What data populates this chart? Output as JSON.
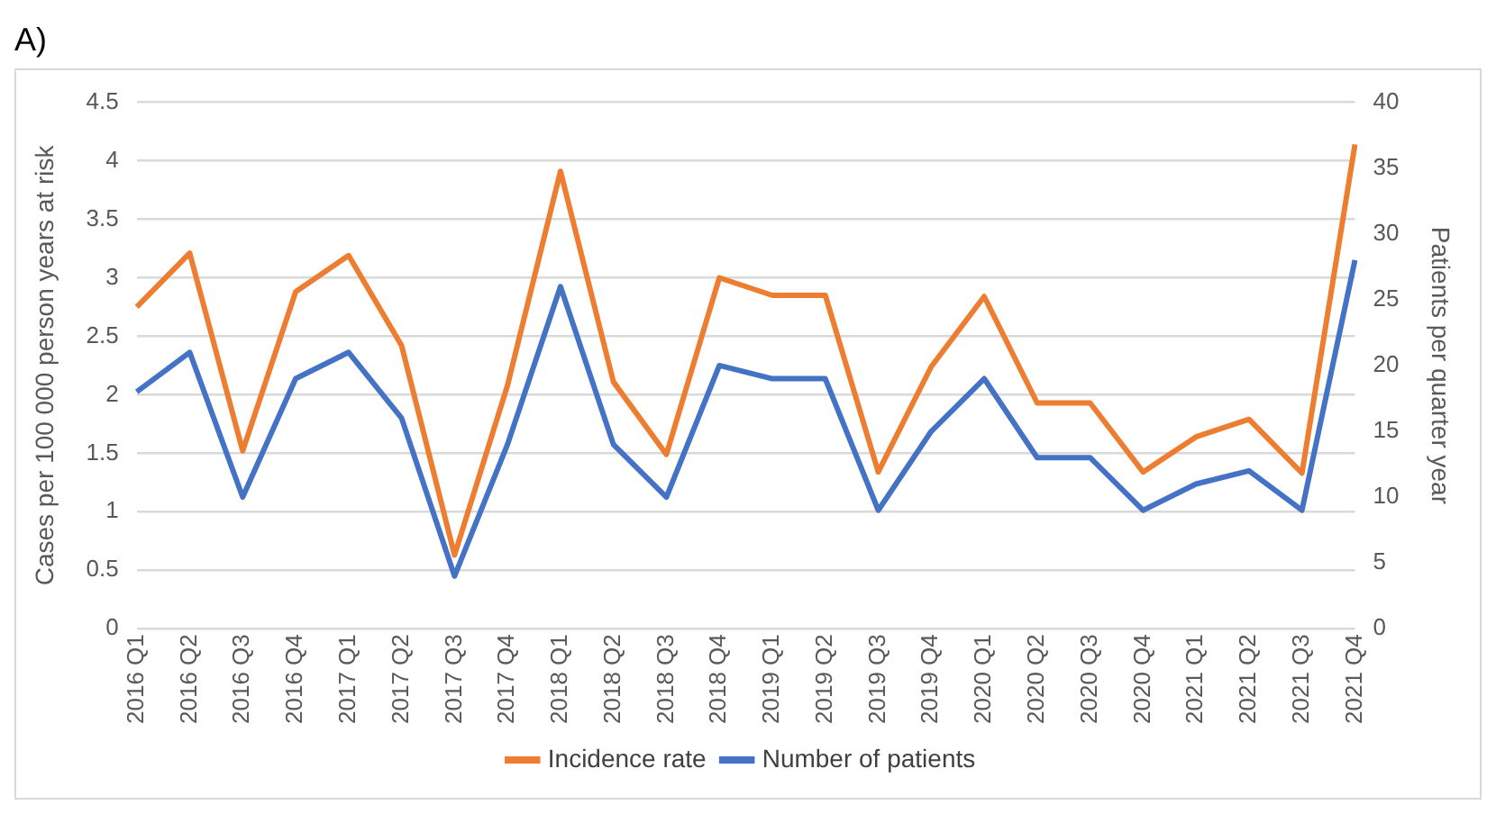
{
  "chart_data": {
    "type": "line",
    "title": "A)",
    "ylabel": "Cases per 100 000 person years at risk",
    "y2label": "Patients per quarter year",
    "categories": [
      "2016 Q1",
      "2016 Q2",
      "2016 Q3",
      "2016 Q4",
      "2017 Q1",
      "2017 Q2",
      "2017 Q3",
      "2017 Q4",
      "2018 Q1",
      "2018 Q2",
      "2018 Q3",
      "2018 Q4",
      "2019 Q1",
      "2019 Q2",
      "2019 Q3",
      "2019 Q4",
      "2020 Q1",
      "2020 Q2",
      "2020 Q3",
      "2020 Q4",
      "2021 Q1",
      "2021 Q2",
      "2021 Q3",
      "2021 Q4"
    ],
    "series": [
      {
        "name": "Incidence rate",
        "color": "#ed7d31",
        "values": [
          2.75,
          3.21,
          1.52,
          2.88,
          3.19,
          2.42,
          0.63,
          2.08,
          3.91,
          2.11,
          1.49,
          3.0,
          2.85,
          2.85,
          1.34,
          2.24,
          2.84,
          1.93,
          1.93,
          1.34,
          1.64,
          1.79,
          1.33,
          4.14
        ]
      },
      {
        "name": "Number of patients",
        "color": "#4472c4",
        "axis": "y2",
        "values": [
          18,
          21,
          10,
          19,
          21,
          16,
          4,
          14,
          26,
          14,
          10,
          20,
          19,
          19,
          9,
          15,
          19,
          13,
          13,
          9,
          11,
          12,
          9,
          28
        ]
      }
    ],
    "ylim": [
      0,
      4.5
    ],
    "yticks": [
      0,
      0.5,
      1,
      1.5,
      2,
      2.5,
      3,
      3.5,
      4,
      4.5
    ],
    "y2lim": [
      0,
      40
    ],
    "y2ticks": [
      0,
      5,
      10,
      15,
      20,
      25,
      30,
      35,
      40
    ],
    "grid": "y",
    "legend": "bottom",
    "marker": "none",
    "line_style": "solid"
  }
}
